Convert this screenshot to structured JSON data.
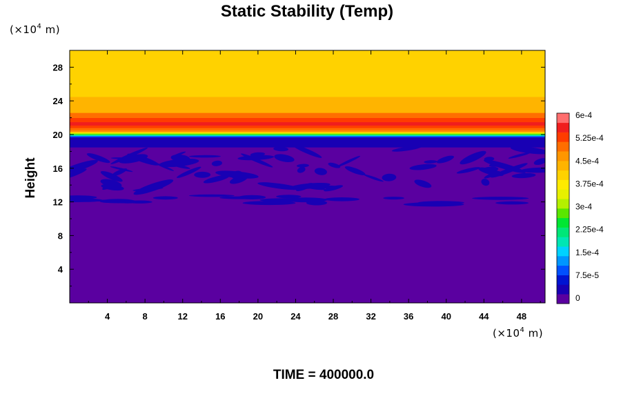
{
  "chart_data": {
    "type": "heatmap",
    "title": "Static Stability (Temp)",
    "ylabel": "Height",
    "y_unit": {
      "prefix": "(×10",
      "exp": "4",
      "suffix": " m)"
    },
    "x_unit": {
      "prefix": "(×10",
      "exp": "4",
      "suffix": " m)"
    },
    "xlim": [
      0,
      50.5
    ],
    "ylim": [
      0,
      30
    ],
    "xticks": [
      4,
      8,
      12,
      16,
      20,
      24,
      28,
      32,
      36,
      40,
      44,
      48
    ],
    "yticks": [
      4,
      8,
      12,
      16,
      20,
      24,
      28
    ],
    "vertical_profile": {
      "height": [
        0,
        10.5,
        11.0,
        12.0,
        12.6,
        13.2,
        18.5,
        19.4,
        19.7,
        19.85,
        20.0,
        20.15,
        20.3,
        20.5,
        20.8,
        21.1,
        21.5,
        22.0,
        22.6,
        23.4,
        24.5,
        25.5,
        27.0,
        28.5,
        30.0
      ],
      "value": [
        1e-05,
        1e-05,
        3e-05,
        3e-05,
        2e-05,
        2e-05,
        4e-05,
        4e-05,
        0.0001,
        0.0002,
        0.0003,
        0.0004,
        0.00048,
        0.00052,
        0.00056,
        0.00058,
        0.00054,
        0.0005,
        0.00046,
        0.00044,
        0.00042,
        0.00041,
        0.00041,
        0.00042,
        0.00042
      ]
    },
    "colorbar": {
      "vmin": 0,
      "vmax": 0.000625,
      "tick_values": [
        0,
        7.5e-05,
        0.00015,
        0.000225,
        0.0003,
        0.000375,
        0.00045,
        0.000525,
        0.0006
      ],
      "tick_labels": [
        "0",
        "7.5e-5",
        "1.5e-4",
        "2.25e-4",
        "3e-4",
        "3.75e-4",
        "4.5e-4",
        "5.25e-4",
        "6e-4"
      ],
      "colors": [
        "#5a00a0",
        "#1800b4",
        "#0014d2",
        "#0050ff",
        "#0096ff",
        "#00d2ff",
        "#00e6b4",
        "#00e678",
        "#00e632",
        "#5ae600",
        "#b4f000",
        "#e6f000",
        "#ffeb00",
        "#ffd200",
        "#ffb400",
        "#ff9600",
        "#ff6e00",
        "#ff3c00",
        "#f01e1e",
        "#ff6e6e"
      ]
    },
    "grid": false
  },
  "footer": {
    "time_label": "TIME = 400000.0"
  }
}
